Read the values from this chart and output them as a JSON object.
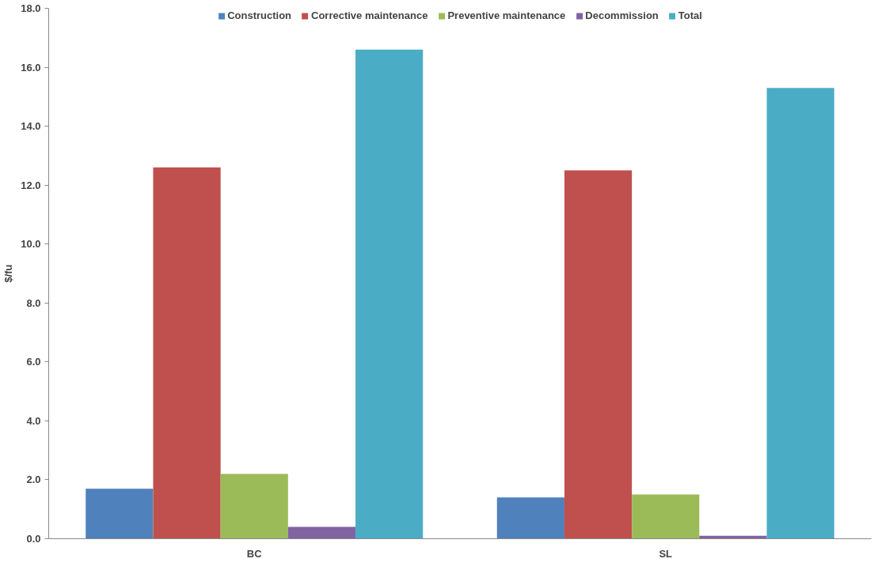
{
  "chart_data": {
    "type": "bar",
    "ylabel": "$/fu",
    "categories": [
      "BC",
      "SL"
    ],
    "series": [
      {
        "name": "Construction",
        "color": "#4f81bd",
        "values": [
          1.7,
          1.4
        ]
      },
      {
        "name": "Corrective maintenance",
        "color": "#c0504d",
        "values": [
          12.6,
          12.5
        ]
      },
      {
        "name": "Preventive maintenance",
        "color": "#9bbb59",
        "values": [
          2.2,
          1.5
        ]
      },
      {
        "name": "Decommission",
        "color": "#8064a2",
        "values": [
          0.4,
          0.1
        ]
      },
      {
        "name": "Total",
        "color": "#4bacc6",
        "values": [
          16.6,
          15.3
        ]
      }
    ],
    "ylim": [
      0,
      18
    ],
    "yticks": [
      {
        "value": 0,
        "label": "0.0"
      },
      {
        "value": 2,
        "label": "2.0"
      },
      {
        "value": 4,
        "label": "4.0"
      },
      {
        "value": 6,
        "label": "6.0"
      },
      {
        "value": 8,
        "label": "8.0"
      },
      {
        "value": 10,
        "label": "10.0"
      },
      {
        "value": 12,
        "label": "12.0"
      },
      {
        "value": 14,
        "label": "14.0"
      },
      {
        "value": 16,
        "label": "16.0"
      },
      {
        "value": 18,
        "label": "18.0"
      }
    ],
    "grid": false,
    "legend": "top"
  }
}
